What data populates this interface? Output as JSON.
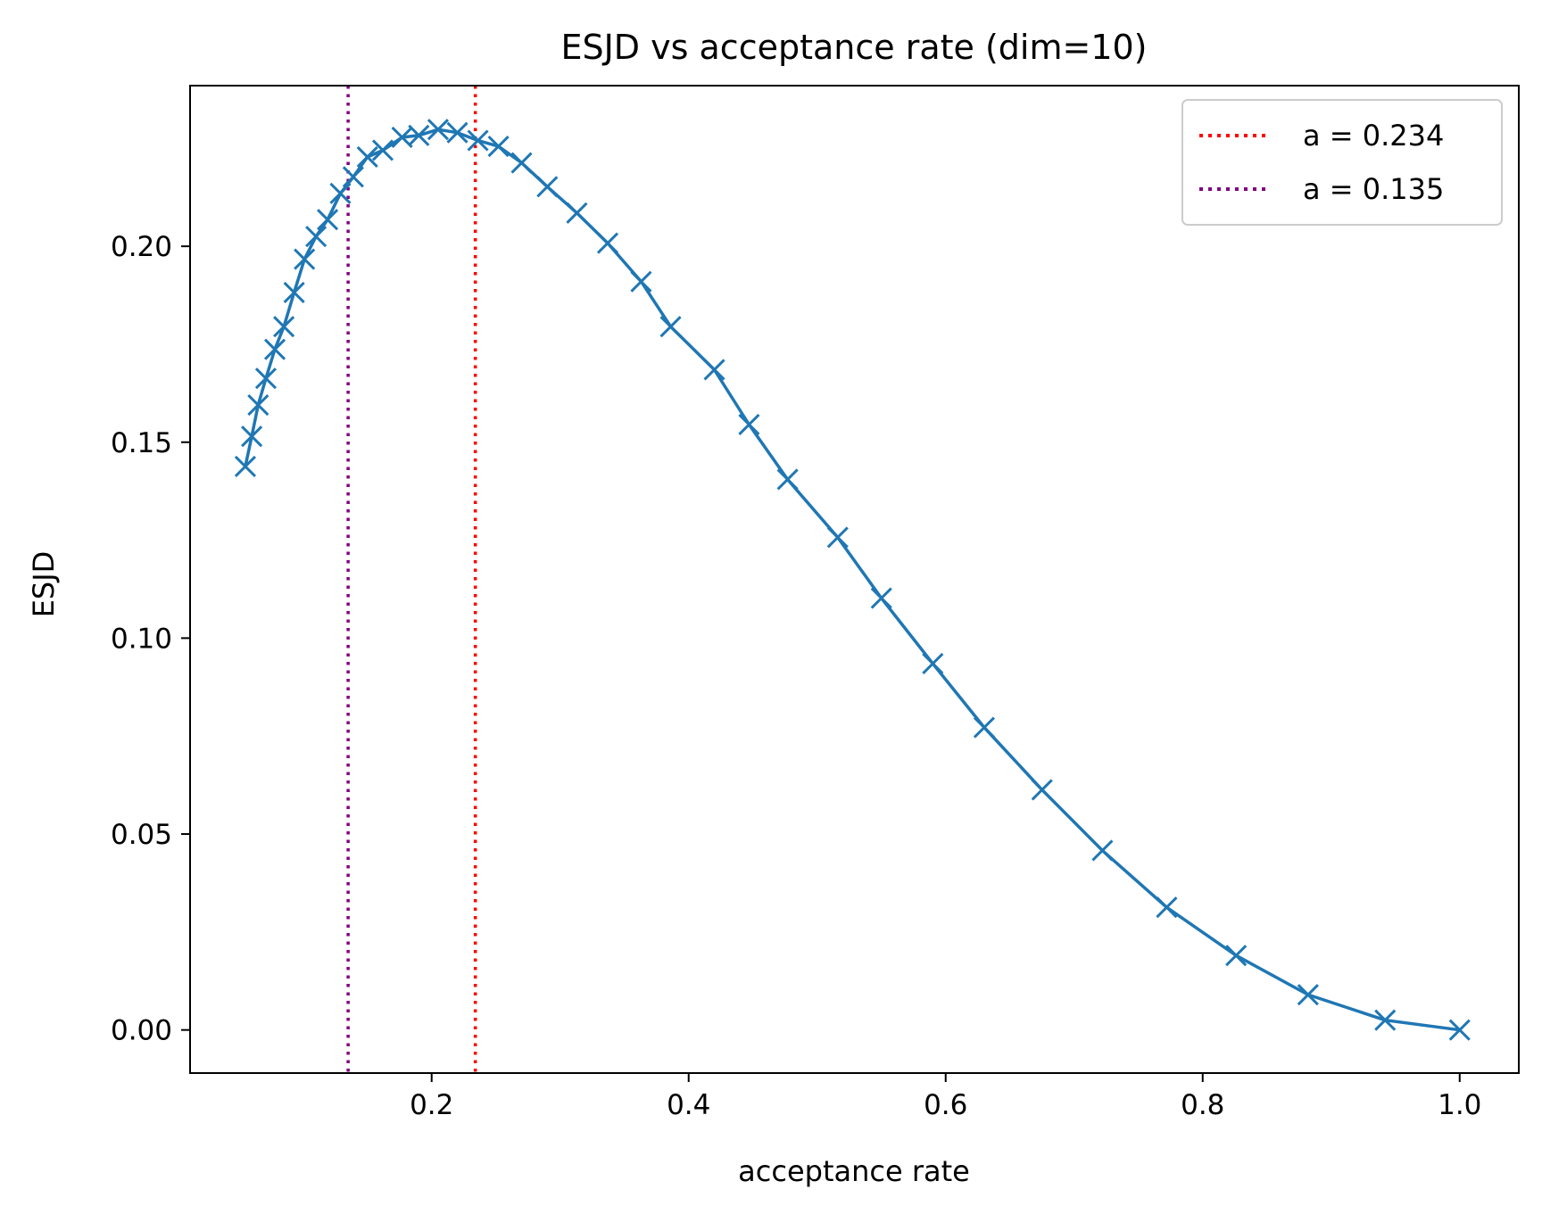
{
  "chart_data": {
    "type": "line",
    "title": "ESJD vs acceptance rate (dim=10)",
    "xlabel": "acceptance rate",
    "ylabel": "ESJD",
    "xlim": [
      0.012,
      1.046
    ],
    "ylim": [
      -0.011,
      0.241
    ],
    "xticks": [
      0.2,
      0.4,
      0.6,
      0.8,
      1.0
    ],
    "xtick_labels": [
      "0.2",
      "0.4",
      "0.6",
      "0.8",
      "1.0"
    ],
    "yticks": [
      0.0,
      0.05,
      0.1,
      0.15,
      0.2
    ],
    "ytick_labels": [
      "0.00",
      "0.05",
      "0.10",
      "0.15",
      "0.20"
    ],
    "grid": false,
    "legend_position": "top-right",
    "series": [
      {
        "name": "ESJD",
        "color": "#1f77b4",
        "marker": "x",
        "x": [
          0.055,
          0.06,
          0.065,
          0.071,
          0.078,
          0.085,
          0.093,
          0.101,
          0.11,
          0.119,
          0.129,
          0.139,
          0.15,
          0.162,
          0.177,
          0.19,
          0.205,
          0.22,
          0.236,
          0.252,
          0.27,
          0.29,
          0.313,
          0.337,
          0.363,
          0.386,
          0.42,
          0.447,
          0.477,
          0.516,
          0.55,
          0.59,
          0.63,
          0.675,
          0.722,
          0.772,
          0.826,
          0.882,
          0.942,
          1.0
        ],
        "y": [
          0.1438,
          0.1515,
          0.1595,
          0.1663,
          0.1737,
          0.1795,
          0.1882,
          0.1967,
          0.2025,
          0.2068,
          0.2135,
          0.2177,
          0.2228,
          0.2245,
          0.2278,
          0.2283,
          0.2298,
          0.229,
          0.227,
          0.2255,
          0.2213,
          0.2152,
          0.2085,
          0.2008,
          0.191,
          0.1795,
          0.1685,
          0.1545,
          0.1405,
          0.1257,
          0.1102,
          0.0935,
          0.0772,
          0.0613,
          0.0458,
          0.0313,
          0.019,
          0.009,
          0.0025,
          0.0
        ]
      }
    ],
    "reference_lines": [
      {
        "label": "a = 0.234",
        "x": 0.234,
        "color": "#ff0000",
        "style": "dotted"
      },
      {
        "label": "a = 0.135",
        "x": 0.135,
        "color": "#800080",
        "style": "dotted"
      }
    ]
  }
}
